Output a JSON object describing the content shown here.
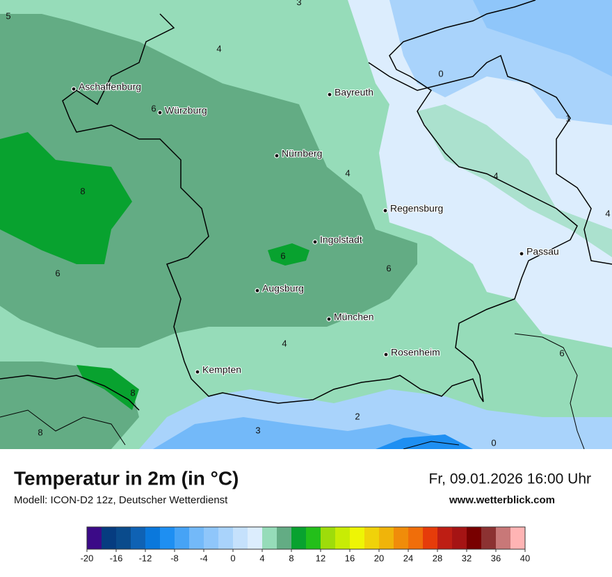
{
  "map": {
    "cities": [
      "Aschaffenburg",
      "Würzburg",
      "Bayreuth",
      "Nürnberg",
      "Regensburg",
      "Ingolstadt",
      "Passau",
      "Augsburg",
      "München",
      "Rosenheim",
      "Kempten"
    ],
    "contour_labels": [
      5,
      3,
      4,
      0,
      6,
      1,
      4,
      4,
      8,
      4,
      6,
      6,
      6,
      4,
      6,
      8,
      2,
      3,
      8,
      0
    ]
  },
  "footer": {
    "title": "Temperatur in 2m (in °C)",
    "subtitle": "Modell: ICON-D2 12z, Deutscher Wetterdienst",
    "datetime": "Fr, 09.01.2026 16:00 Uhr",
    "website": "www.wetterblick.com"
  },
  "colorbar": {
    "range": [
      -20,
      40
    ],
    "ticks": [
      -20,
      -16,
      -12,
      -8,
      -4,
      0,
      4,
      8,
      12,
      16,
      20,
      24,
      28,
      32,
      36,
      40
    ],
    "colors": [
      "#3b0a87",
      "#063c80",
      "#0a4b8c",
      "#0f62b4",
      "#0a78dc",
      "#1e8ff2",
      "#46a3f6",
      "#73b9f9",
      "#8fc6fa",
      "#a9d3fb",
      "#c5e1fc",
      "#dcedfd",
      "#96dcb9",
      "#63ac84",
      "#08a22f",
      "#23bf1a",
      "#9edc0b",
      "#c8ec05",
      "#eef505",
      "#f0d20a",
      "#f0b40a",
      "#f08c0a",
      "#f06e0a",
      "#e63c0a",
      "#be1e14",
      "#a51414",
      "#780000",
      "#8c3232",
      "#c87878",
      "#ffb4b4"
    ]
  }
}
